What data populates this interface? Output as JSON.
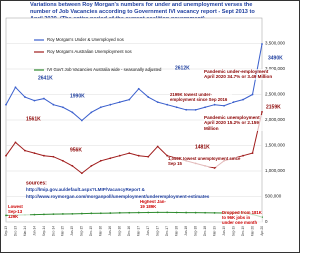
{
  "chart_data": {
    "type": "line",
    "title": "Variations between Roy Morgan's numbers for under and unemployment verses the number of Job Vacancies according to Government IVI vacancy report - Sept 2013 to April 2020. (The entire period of the current coalition government)",
    "categories": [
      "Sep-13",
      "Dec-13",
      "Mar-14",
      "Jun-14",
      "Sep-14",
      "Dec-14",
      "Mar-15",
      "Jun-15",
      "Sep-15",
      "Dec-15",
      "Mar-16",
      "Jun-16",
      "Sep-16",
      "Dec-16",
      "Mar-17",
      "Jun-17",
      "Sep-17",
      "Dec-17",
      "Mar-18",
      "Jun-18",
      "Sep-18",
      "Dec-18",
      "Mar-19",
      "Jun-19",
      "Sep-19",
      "Dec-19",
      "Mar-20",
      "Apr-20"
    ],
    "series": [
      {
        "name": "Roy Morgan's Under & Unemployed nos",
        "color": "#3a5fcd",
        "values": [
          2300000,
          2641000,
          2450000,
          2380000,
          2420000,
          2300000,
          2250000,
          2150000,
          1990000,
          2150000,
          2250000,
          2300000,
          2350000,
          2400000,
          2612000,
          2450000,
          2350000,
          2300000,
          2250000,
          2200000,
          2199000,
          2250000,
          2300000,
          2280000,
          2350000,
          2400000,
          2500000,
          3490000
        ]
      },
      {
        "name": "Roy Morgan's Australian Unemployment nos",
        "color": "#a01c1c",
        "values": [
          1300000,
          1561000,
          1400000,
          1350000,
          1300000,
          1280000,
          1200000,
          1100000,
          956000,
          1100000,
          1200000,
          1250000,
          1300000,
          1350000,
          1300000,
          1280000,
          1481000,
          1300000,
          1250000,
          1200000,
          1150000,
          1100000,
          1059000,
          1200000,
          1250000,
          1300000,
          1350000,
          2159000
        ]
      },
      {
        "name": "IVI Gov't Job Vacancies Australia wide - seasonally adjusted",
        "color": "#2e8b2e",
        "values": [
          129000,
          135000,
          140000,
          145000,
          150000,
          155000,
          158000,
          160000,
          165000,
          170000,
          172000,
          175000,
          180000,
          182000,
          185000,
          186000,
          188000,
          189000,
          187000,
          185000,
          183000,
          181000,
          178000,
          176000,
          175000,
          181000,
          150000,
          96000
        ]
      }
    ],
    "ylim": [
      0,
      4000000
    ],
    "yticks": [
      0,
      {
        "value": 500000,
        "label": "500,000"
      },
      {
        "value": 1000000,
        "label": "1,000,000"
      },
      {
        "value": 1500000,
        "label": "1,500,000"
      },
      {
        "value": 2000000,
        "label": "2,000,000"
      },
      {
        "value": 2500000,
        "label": "2,500,000"
      },
      {
        "value": 3000000,
        "label": "3,000,000"
      },
      {
        "value": 3500000,
        "label": "3,500,000"
      }
    ],
    "grid": true,
    "annotations": [
      {
        "text": "2641K"
      },
      {
        "text": "1990K"
      },
      {
        "text": "2612K"
      },
      {
        "text": "3490K"
      },
      {
        "text": "1561K"
      },
      {
        "text": "956K"
      },
      {
        "text": "1481K"
      },
      {
        "text": "2159K"
      },
      {
        "text": "Pandemic under-employment April 2020 34.7% or 3.49 Million"
      },
      {
        "text": "2199K lowest under-employment since Sep 2016"
      },
      {
        "text": "Pandemic unemployment April 2020 15.2% or 2.159 Million"
      },
      {
        "text": "1,059K lowest unemployment since Sep 15"
      },
      {
        "text": "sources:"
      },
      {
        "text": "http://lmip.gov.au/default.aspx?LMIP/VacancyReport &"
      },
      {
        "text": "http://www.roymorgan.com/morganpoll/unemployment/underemployment-estimates"
      },
      {
        "text": "Lowest Sep-13 129K"
      },
      {
        "text": "Highest Jan-19 189K"
      },
      {
        "text": "Dropped from 181K to 96K jobs in under one month"
      }
    ]
  }
}
